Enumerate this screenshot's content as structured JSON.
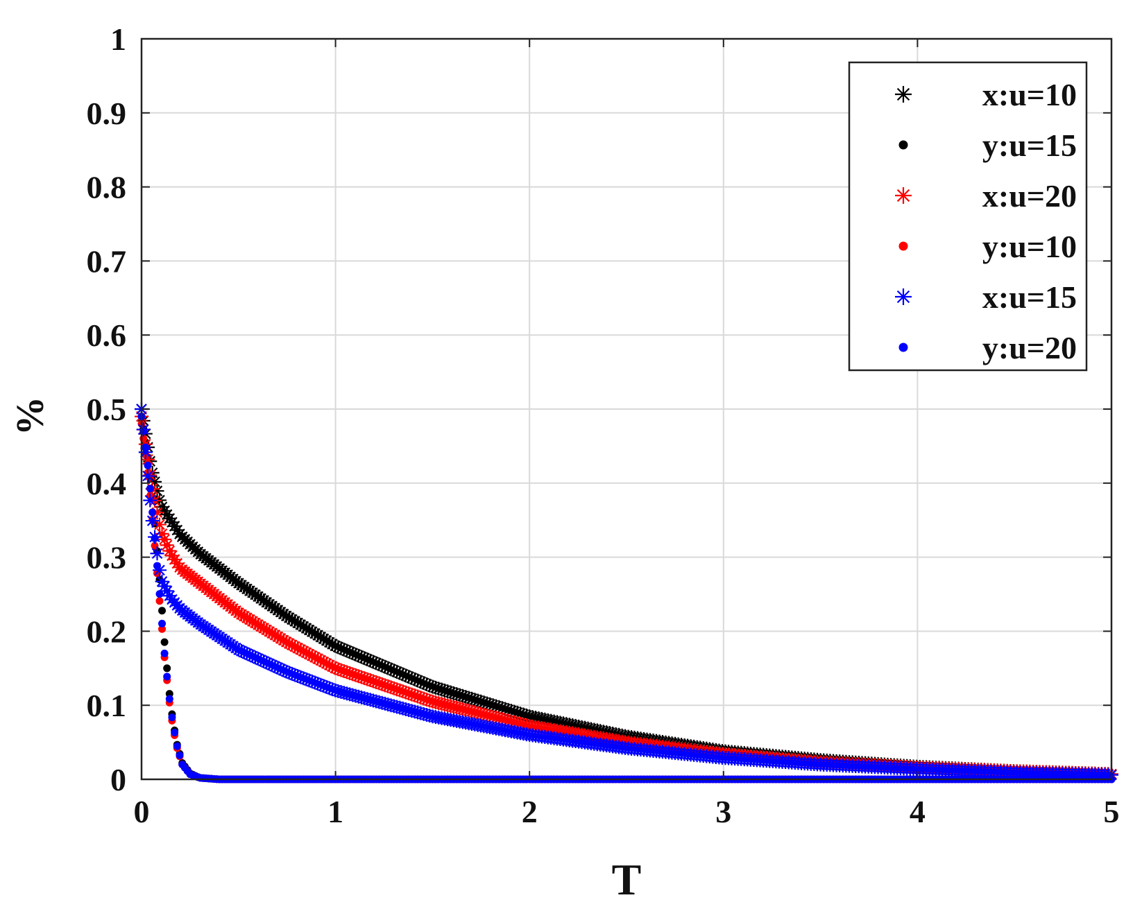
{
  "chart_data": {
    "type": "scatter",
    "title": "",
    "xlabel": "T",
    "ylabel": "%",
    "xlim": [
      0,
      5
    ],
    "ylim": [
      0,
      1
    ],
    "xticks": [
      "0",
      "1",
      "2",
      "3",
      "4",
      "5"
    ],
    "yticks": [
      "0",
      "0.1",
      "0.2",
      "0.3",
      "0.4",
      "0.5",
      "0.6",
      "0.7",
      "0.8",
      "0.9",
      "1"
    ],
    "grid": true,
    "legend_position": "top-right",
    "series": [
      {
        "name": "x:u=10",
        "marker": "asterisk",
        "color": "#000000",
        "x": [
          0,
          0.05,
          0.1,
          0.2,
          0.3,
          0.5,
          0.75,
          1.0,
          1.5,
          2.0,
          2.5,
          3.0,
          3.5,
          4.0,
          4.5,
          5.0
        ],
        "y": [
          0.5,
          0.42,
          0.37,
          0.33,
          0.305,
          0.265,
          0.22,
          0.18,
          0.125,
          0.085,
          0.058,
          0.038,
          0.026,
          0.017,
          0.011,
          0.007
        ]
      },
      {
        "name": "y:u=15",
        "marker": "dot",
        "color": "#000000",
        "x": [
          0,
          0.03,
          0.06,
          0.09,
          0.12,
          0.15,
          0.18,
          0.21,
          0.25,
          0.3,
          0.4,
          0.5,
          1.0,
          2.0,
          3.0,
          4.0,
          5.0
        ],
        "y": [
          0.49,
          0.44,
          0.37,
          0.28,
          0.18,
          0.1,
          0.05,
          0.022,
          0.008,
          0.002,
          0,
          0,
          0,
          0,
          0,
          0,
          0
        ]
      },
      {
        "name": "x:u=20",
        "marker": "asterisk",
        "color": "#ff0000",
        "x": [
          0,
          0.05,
          0.1,
          0.15,
          0.2,
          0.3,
          0.5,
          0.75,
          1.0,
          1.5,
          2.0,
          2.5,
          3.0,
          3.5,
          4.0,
          4.5,
          5.0
        ],
        "y": [
          0.49,
          0.4,
          0.335,
          0.305,
          0.285,
          0.265,
          0.225,
          0.185,
          0.15,
          0.105,
          0.072,
          0.05,
          0.034,
          0.023,
          0.016,
          0.011,
          0.007
        ]
      },
      {
        "name": "y:u=10",
        "marker": "dot",
        "color": "#ff0000",
        "x": [
          0,
          0.03,
          0.06,
          0.09,
          0.12,
          0.15,
          0.18,
          0.21,
          0.25,
          0.3,
          0.4,
          0.5,
          1.0,
          2.0,
          3.0,
          4.0,
          5.0
        ],
        "y": [
          0.48,
          0.42,
          0.34,
          0.25,
          0.16,
          0.09,
          0.045,
          0.02,
          0.007,
          0.002,
          0,
          0,
          0,
          0,
          0,
          0,
          0
        ]
      },
      {
        "name": "x:u=15",
        "marker": "asterisk",
        "color": "#0000ff",
        "x": [
          0,
          0.05,
          0.1,
          0.15,
          0.2,
          0.3,
          0.5,
          0.75,
          1.0,
          1.5,
          2.0,
          2.5,
          3.0,
          3.5,
          4.0,
          4.5,
          5.0
        ],
        "y": [
          0.5,
          0.36,
          0.27,
          0.245,
          0.23,
          0.21,
          0.175,
          0.145,
          0.12,
          0.085,
          0.06,
          0.042,
          0.029,
          0.02,
          0.014,
          0.009,
          0.006
        ]
      },
      {
        "name": "y:u=20",
        "marker": "dot",
        "color": "#0000ff",
        "x": [
          0,
          0.03,
          0.06,
          0.09,
          0.12,
          0.15,
          0.18,
          0.21,
          0.25,
          0.3,
          0.4,
          0.5,
          1.0,
          2.0,
          3.0,
          4.0,
          5.0
        ],
        "y": [
          0.49,
          0.43,
          0.35,
          0.26,
          0.165,
          0.095,
          0.048,
          0.02,
          0.007,
          0.002,
          0,
          0,
          0,
          0,
          0,
          0,
          0
        ]
      }
    ]
  }
}
